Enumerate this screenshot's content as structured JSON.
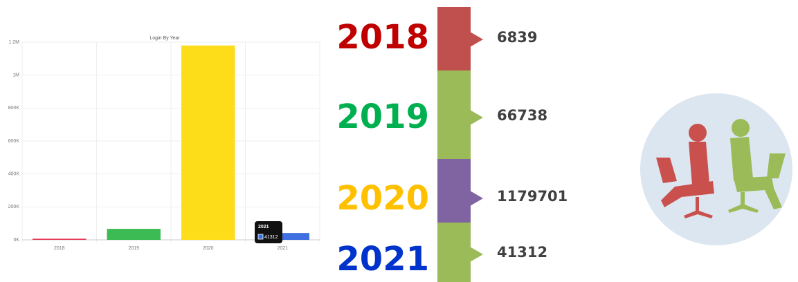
{
  "chart_data": {
    "type": "bar",
    "title": "Login By Year",
    "categories": [
      "2018",
      "2019",
      "2020",
      "2021"
    ],
    "values": [
      6839,
      66738,
      1179701,
      41312
    ],
    "colors": [
      "#e8385a",
      "#3cba54",
      "#fddd1a",
      "#3f6fe0"
    ],
    "ylim": [
      0,
      1200000
    ],
    "yticks": [
      {
        "value": 0,
        "label": "0K"
      },
      {
        "value": 200000,
        "label": "200K"
      },
      {
        "value": 400000,
        "label": "400K"
      },
      {
        "value": 600000,
        "label": "600K"
      },
      {
        "value": 800000,
        "label": "800K"
      },
      {
        "value": 1000000,
        "label": "1M"
      },
      {
        "value": 1200000,
        "label": "1.2M"
      }
    ],
    "grid": true
  },
  "timeline": {
    "items": [
      {
        "year": "2018",
        "year_color": "#c00000",
        "segment_color": "#c0504d",
        "count": 6839
      },
      {
        "year": "2019",
        "year_color": "#00b050",
        "segment_color": "#9bbb59",
        "count": 66738
      },
      {
        "year": "2020",
        "year_color": "#ffc000",
        "segment_color": "#8064a2",
        "count": 1179701
      },
      {
        "year": "2021",
        "year_color": "#0033cc",
        "segment_color": "#9bbb59",
        "count": 41312
      }
    ]
  }
}
